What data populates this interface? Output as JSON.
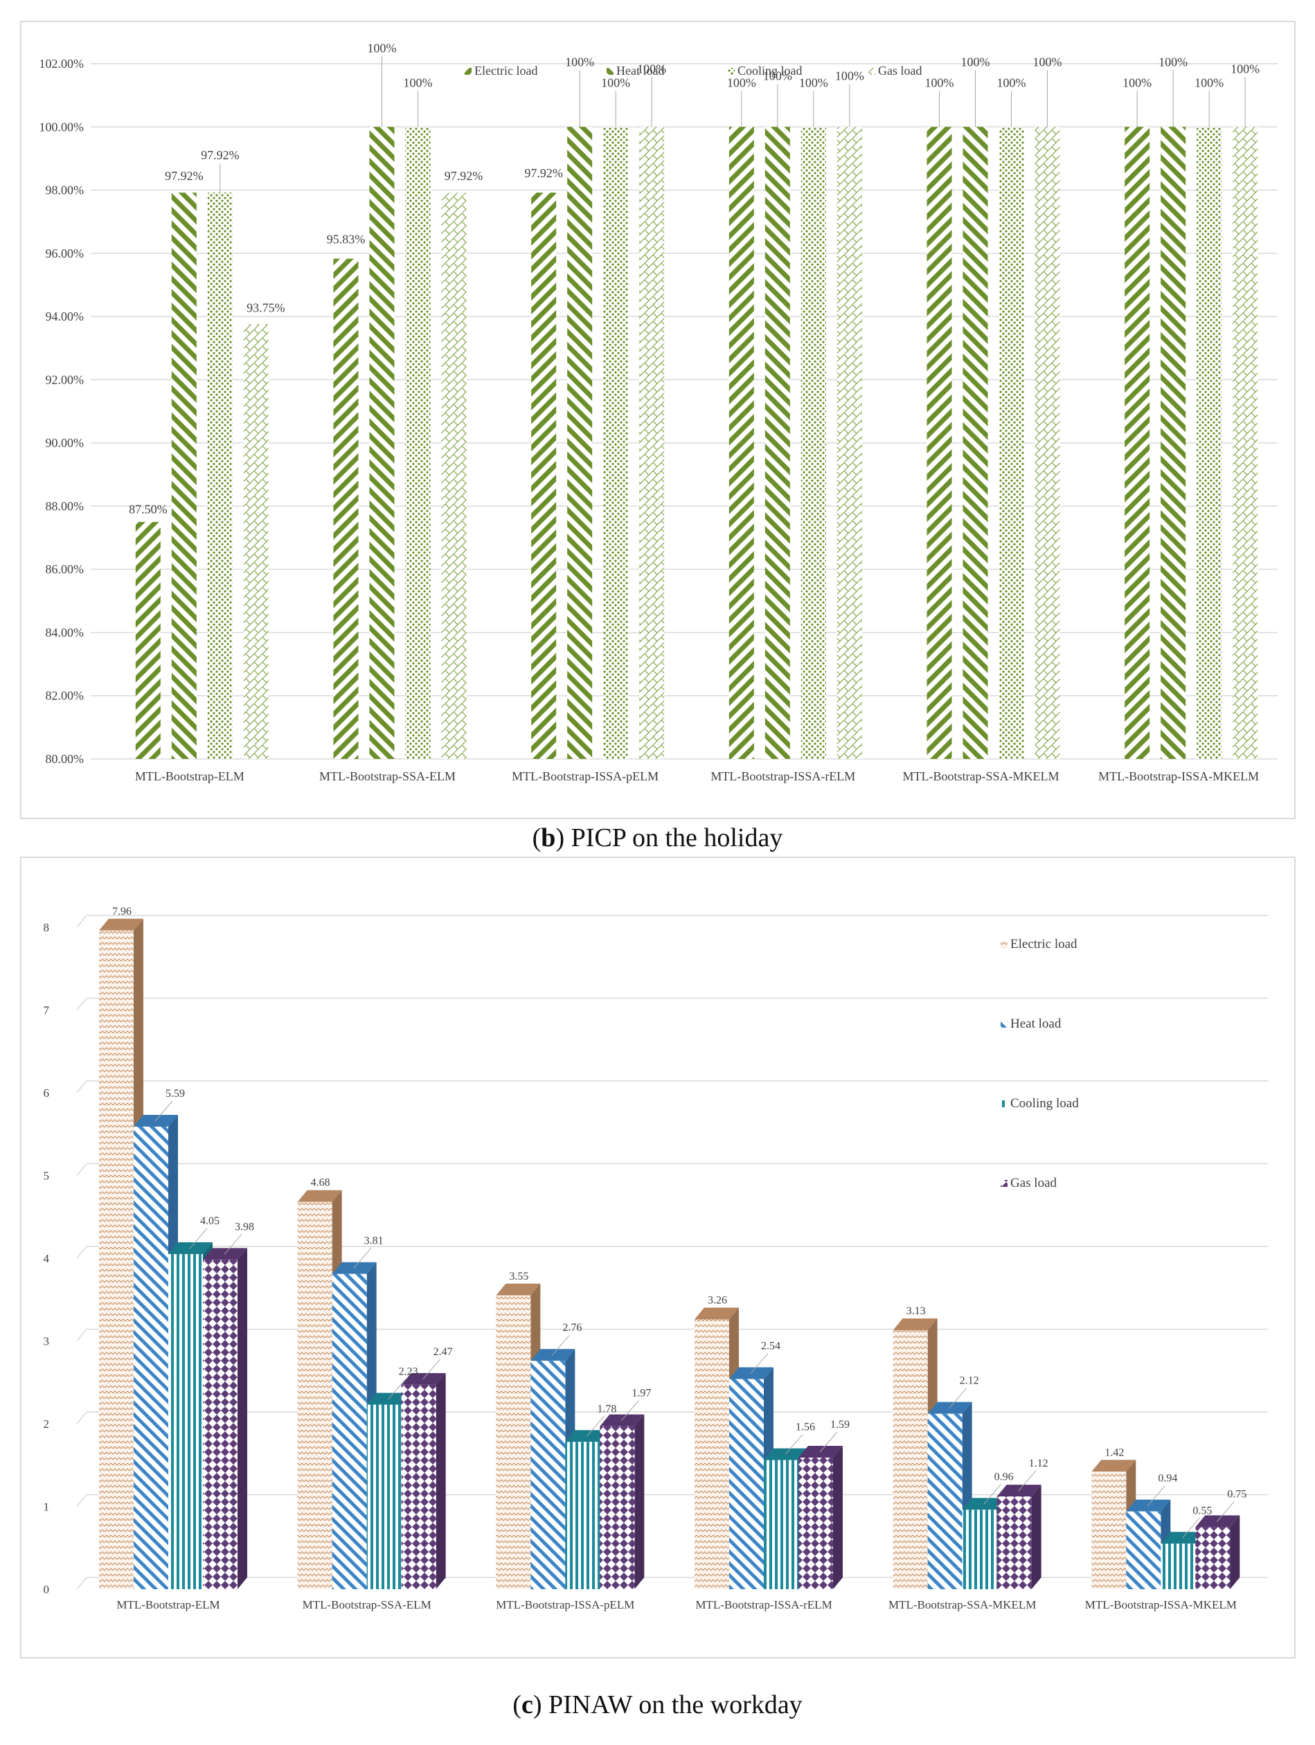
{
  "charts": [
    {
      "id": "b",
      "caption": {
        "letter": "b",
        "text": "PICP on the holiday"
      },
      "chart_data": {
        "type": "bar",
        "title": "",
        "xlabel": "",
        "ylabel": "",
        "ylim": [
          80,
          102
        ],
        "ytick_values": [
          80,
          82,
          84,
          86,
          88,
          90,
          92,
          94,
          96,
          98,
          100,
          102
        ],
        "ytick_labels": [
          "80.00%",
          "82.00%",
          "84.00%",
          "86.00%",
          "88.00%",
          "90.00%",
          "92.00%",
          "94.00%",
          "96.00%",
          "98.00%",
          "100.00%",
          "102.00%"
        ],
        "grid": true,
        "legend": "top",
        "categories": [
          "MTL-Bootstrap-ELM",
          "MTL-Bootstrap-SSA-ELM",
          "MTL-Bootstrap-ISSA-pELM",
          "MTL-Bootstrap-ISSA-rELM",
          "MTL-Bootstrap-SSA-MKELM",
          "MTL-Bootstrap-ISSA-MKELM"
        ],
        "series": [
          {
            "name": "Electric load",
            "values": [
              87.5,
              95.83,
              97.92,
              100,
              100,
              100
            ],
            "labels": [
              "87.50%",
              "95.83%",
              "97.92%",
              "100%",
              "100%",
              "100%"
            ]
          },
          {
            "name": "Heat load",
            "values": [
              97.92,
              100,
              100,
              100,
              100,
              100
            ],
            "labels": [
              "97.92%",
              "100%",
              "100%",
              "100%",
              "100%",
              "100%"
            ]
          },
          {
            "name": "Cooling load",
            "values": [
              97.92,
              100,
              100,
              100,
              100,
              100
            ],
            "labels": [
              "97.92%",
              "100%",
              "100%",
              "100%",
              "100%",
              "100%"
            ]
          },
          {
            "name": "Gas load",
            "values": [
              93.75,
              97.92,
              100,
              100,
              100,
              100
            ],
            "labels": [
              "93.75%",
              "97.92%",
              "100%",
              "100%",
              "100%",
              "100%"
            ]
          }
        ],
        "colors": [
          "#6b8f2a",
          "#6b8f2a",
          "#6b8f2a",
          "#8cab52"
        ]
      }
    },
    {
      "id": "c",
      "caption": {
        "letter": "c",
        "text": "PINAW on the workday"
      },
      "chart_data": {
        "type": "bar",
        "title": "",
        "xlabel": "",
        "ylabel": "",
        "ylim": [
          0,
          8
        ],
        "ytick_values": [
          0,
          1,
          2,
          3,
          4,
          5,
          6,
          7,
          8
        ],
        "ytick_labels": [
          "0",
          "1",
          "2",
          "3",
          "4",
          "5",
          "6",
          "7",
          "8"
        ],
        "grid": true,
        "legend": "right",
        "three_d": true,
        "categories": [
          "MTL-Bootstrap-ELM",
          "MTL-Bootstrap-SSA-ELM",
          "MTL-Bootstrap-ISSA-pELM",
          "MTL-Bootstrap-ISSA-rELM",
          "MTL-Bootstrap-SSA-MKELM",
          "MTL-Bootstrap-ISSA-MKELM"
        ],
        "series": [
          {
            "name": "Electric load",
            "values": [
              7.96,
              4.68,
              3.55,
              3.26,
              3.13,
              1.42
            ],
            "labels": [
              "7.96",
              "4.68",
              "3.55",
              "3.26",
              "3.13",
              "1.42"
            ]
          },
          {
            "name": "Heat load",
            "values": [
              5.59,
              3.81,
              2.76,
              2.54,
              2.12,
              0.94
            ],
            "labels": [
              "5.59",
              "3.81",
              "2.76",
              "2.54",
              "2.12",
              "0.94"
            ]
          },
          {
            "name": "Cooling load",
            "values": [
              4.05,
              2.23,
              1.78,
              1.56,
              0.96,
              0.55
            ],
            "labels": [
              "4.05",
              "2.23",
              "1.78",
              "1.56",
              "0.96",
              "0.55"
            ]
          },
          {
            "name": "Gas load",
            "values": [
              3.98,
              2.47,
              1.97,
              1.59,
              1.12,
              0.75
            ],
            "labels": [
              "3.98",
              "2.47",
              "1.97",
              "1.59",
              "1.12",
              "0.75"
            ]
          }
        ],
        "colors": [
          "#c9956b",
          "#3d85c6",
          "#1b8a9a",
          "#5f3b78"
        ]
      }
    }
  ]
}
